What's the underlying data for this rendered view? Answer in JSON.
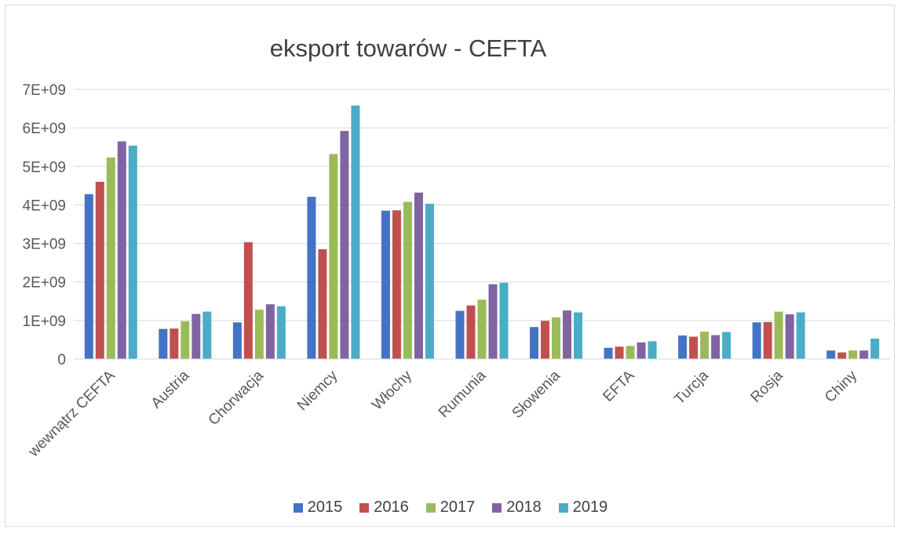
{
  "chart_data": {
    "type": "bar",
    "title": "eksport towarów - CEFTA",
    "xlabel": "",
    "ylabel": "",
    "ylim": [
      0,
      7000000000
    ],
    "yticks": [
      {
        "value": 0,
        "label": "0"
      },
      {
        "value": 1000000000,
        "label": "1E+09"
      },
      {
        "value": 2000000000,
        "label": "2E+09"
      },
      {
        "value": 3000000000,
        "label": "3E+09"
      },
      {
        "value": 4000000000,
        "label": "4E+09"
      },
      {
        "value": 5000000000,
        "label": "5E+09"
      },
      {
        "value": 6000000000,
        "label": "6E+09"
      },
      {
        "value": 7000000000,
        "label": "7E+09"
      }
    ],
    "grid": true,
    "legend_position": "bottom",
    "categories": [
      "wewnątrz CEFTA",
      "Austria",
      "Chorwacja",
      "Niemcy",
      "Włochy",
      "Rumunia",
      "Słowenia",
      "EFTA",
      "Turcja",
      "Rosja",
      "Chiny"
    ],
    "series": [
      {
        "name": "2015",
        "color": "#4472c4",
        "values": [
          4280000000,
          780000000,
          950000000,
          4210000000,
          3850000000,
          1250000000,
          830000000,
          290000000,
          610000000,
          950000000,
          220000000
        ]
      },
      {
        "name": "2016",
        "color": "#c0504d",
        "values": [
          4600000000,
          790000000,
          3030000000,
          2850000000,
          3860000000,
          1390000000,
          990000000,
          320000000,
          580000000,
          960000000,
          170000000
        ]
      },
      {
        "name": "2017",
        "color": "#9bbb59",
        "values": [
          5230000000,
          980000000,
          1280000000,
          5320000000,
          4080000000,
          1540000000,
          1080000000,
          340000000,
          710000000,
          1230000000,
          220000000
        ]
      },
      {
        "name": "2018",
        "color": "#8064a2",
        "values": [
          5650000000,
          1170000000,
          1420000000,
          5920000000,
          4320000000,
          1940000000,
          1260000000,
          430000000,
          620000000,
          1160000000,
          220000000
        ]
      },
      {
        "name": "2019",
        "color": "#4bacc6",
        "values": [
          5540000000,
          1230000000,
          1370000000,
          6580000000,
          4030000000,
          1980000000,
          1210000000,
          460000000,
          700000000,
          1210000000,
          530000000
        ]
      }
    ]
  }
}
